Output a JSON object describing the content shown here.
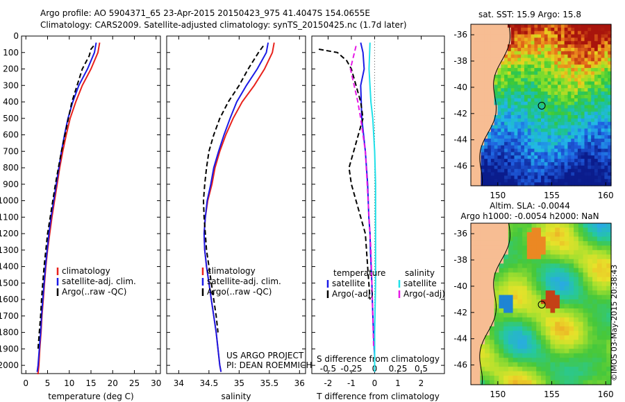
{
  "header": {
    "line1": "Argo profile: AO 5904371_65 23-Apr-2015 20150423_975 41.4047S 154.0655E",
    "line2": "Climatology: CARS2009. Satellite-adjusted climatology: synTS_20150425.nc (1.7d later)"
  },
  "credit": {
    "line1": "US ARGO PROJECT",
    "line2": "PI: DEAN ROEMMICH",
    "stamp": "©IMOS 03-May-2015 20:38:43"
  },
  "colors": {
    "climatology": "#e8211b",
    "satellite": "#1a1ae6",
    "argo": "#000000",
    "satellite_salinity": "#1fe0e8",
    "argo_salinity": "#e619e6"
  },
  "chart_data": [
    {
      "type": "line",
      "name": "temperature",
      "xlabel": "temperature (deg C)",
      "xlim": [
        -1,
        31
      ],
      "xticks": [
        0,
        5,
        10,
        15,
        20,
        25,
        30
      ],
      "ylim": [
        2050,
        0
      ],
      "yticks": [
        0,
        100,
        200,
        300,
        400,
        500,
        600,
        700,
        800,
        900,
        1000,
        1100,
        1200,
        1300,
        1400,
        1500,
        1600,
        1700,
        1800,
        1900,
        2000
      ],
      "legend": [
        "climatology",
        "satellite-adj. clim.",
        "Argo(..raw -QC)"
      ],
      "series": [
        {
          "name": "climatology",
          "style": "solid",
          "color": "climatology",
          "x": [
            17.0,
            16.6,
            15.0,
            13.0,
            11.5,
            10.2,
            9.3,
            8.5,
            7.8,
            7.2,
            6.6,
            6.0,
            5.5,
            5.0,
            4.6,
            4.3,
            4.0,
            3.7,
            3.5,
            3.2,
            3.0,
            2.8,
            2.6
          ],
          "y": [
            40,
            100,
            200,
            300,
            400,
            500,
            600,
            700,
            800,
            900,
            1000,
            1100,
            1200,
            1300,
            1400,
            1500,
            1600,
            1700,
            1800,
            1900,
            2000,
            2050,
            2050
          ]
        },
        {
          "name": "satellite-adj. clim.",
          "style": "solid",
          "color": "satellite",
          "x": [
            16.2,
            15.8,
            14.2,
            12.2,
            10.8,
            9.7,
            8.9,
            8.2,
            7.6,
            7.0,
            6.4,
            5.8,
            5.3,
            4.9,
            4.5,
            4.2,
            3.9,
            3.6,
            3.4,
            3.1,
            2.8,
            2.6
          ],
          "y": [
            40,
            100,
            200,
            300,
            400,
            500,
            600,
            700,
            800,
            900,
            1000,
            1100,
            1200,
            1300,
            1400,
            1500,
            1600,
            1700,
            1800,
            1900,
            2000,
            2040
          ]
        },
        {
          "name": "Argo(..raw -QC)",
          "style": "dashed",
          "color": "argo",
          "x": [
            15.6,
            15.0,
            14.6,
            13.0,
            11.8,
            10.6,
            9.8,
            9.0,
            8.2,
            7.5,
            6.8,
            6.2,
            5.6,
            5.0,
            4.6,
            4.2,
            3.9,
            3.6,
            3.4,
            3.1,
            2.8
          ],
          "y": [
            60,
            80,
            120,
            200,
            300,
            400,
            500,
            600,
            700,
            800,
            900,
            1000,
            1100,
            1200,
            1300,
            1400,
            1500,
            1600,
            1700,
            1800,
            1900
          ]
        }
      ]
    },
    {
      "type": "line",
      "name": "salinity",
      "xlabel": "salinity",
      "xlim": [
        33.8,
        36.1
      ],
      "xticks": [
        34,
        34.5,
        35,
        35.5,
        36
      ],
      "ylim": [
        2050,
        0
      ],
      "legend": [
        "climatology",
        "satellite-adj. clim.",
        "Argo(..raw -QC)"
      ],
      "series": [
        {
          "name": "climatology",
          "style": "solid",
          "color": "climatology",
          "x": [
            35.58,
            35.55,
            35.42,
            35.25,
            35.05,
            34.9,
            34.78,
            34.68,
            34.6,
            34.55,
            34.48,
            34.44,
            34.42,
            34.43,
            34.46,
            34.5,
            34.54,
            34.58,
            34.62,
            34.65,
            34.68,
            34.7
          ],
          "y": [
            40,
            100,
            200,
            300,
            400,
            500,
            600,
            700,
            800,
            900,
            1000,
            1100,
            1200,
            1300,
            1400,
            1500,
            1600,
            1700,
            1800,
            1900,
            2000,
            2040
          ]
        },
        {
          "name": "satellite-adj. clim.",
          "style": "solid",
          "color": "satellite",
          "x": [
            35.48,
            35.45,
            35.3,
            35.12,
            34.96,
            34.85,
            34.75,
            34.66,
            34.58,
            34.53,
            34.47,
            34.44,
            34.42,
            34.43,
            34.46,
            34.5,
            34.54,
            34.58,
            34.62,
            34.65,
            34.68,
            34.7
          ],
          "y": [
            40,
            100,
            200,
            300,
            400,
            500,
            600,
            700,
            800,
            900,
            1000,
            1100,
            1200,
            1300,
            1400,
            1500,
            1600,
            1700,
            1800,
            1900,
            2000,
            2040
          ]
        },
        {
          "name": "Argo(..raw -QC)",
          "style": "dashed",
          "color": "argo",
          "x": [
            35.4,
            35.32,
            35.15,
            35.0,
            34.82,
            34.68,
            34.58,
            34.5,
            34.46,
            34.43,
            34.41,
            34.42,
            34.44,
            34.46,
            34.5,
            34.54,
            34.58,
            34.62,
            34.65
          ],
          "y": [
            60,
            100,
            200,
            300,
            400,
            500,
            600,
            700,
            800,
            900,
            1000,
            1100,
            1200,
            1300,
            1400,
            1500,
            1600,
            1700,
            1800
          ]
        }
      ]
    },
    {
      "type": "line",
      "name": "difference",
      "xlabel": "T difference from climatology",
      "xlabel_top": "S difference from climatology",
      "xlim": [
        -2.7,
        3.0
      ],
      "xticks": [
        -2,
        -1,
        0,
        1,
        2
      ],
      "xticks_top_labels": [
        "-0.5",
        "-0.25",
        "0",
        "0.25",
        "0.5"
      ],
      "xticks_top_values": [
        -0.5,
        -0.25,
        0,
        0.25,
        0.5
      ],
      "ylim": [
        2050,
        0
      ],
      "legend_temperature_title": "temperature",
      "legend_salinity_title": "salinity",
      "legend_temperature": [
        "satellite",
        "Argo(-adj)"
      ],
      "legend_salinity": [
        "satellite",
        "Argo(-adj)"
      ],
      "series": [
        {
          "name": "T satellite",
          "style": "solid",
          "color": "satellite",
          "x": [
            -0.6,
            -0.5,
            -0.45,
            -0.6,
            -0.55,
            -0.4,
            -0.3,
            -0.25,
            -0.2,
            -0.18,
            -0.15,
            -0.12,
            -0.1,
            -0.05,
            0.0,
            0.0
          ],
          "y": [
            40,
            100,
            200,
            300,
            500,
            700,
            900,
            1100,
            1200,
            1300,
            1400,
            1500,
            1600,
            1800,
            1950,
            2040
          ]
        },
        {
          "name": "T Argo(-adj)",
          "style": "dashed",
          "color": "argo",
          "x": [
            -2.4,
            -1.6,
            -1.2,
            -1.0,
            -0.8,
            -0.6,
            -0.5,
            -0.7,
            -0.9,
            -1.1,
            -1.0,
            -0.8,
            -0.6,
            -0.4,
            -0.3,
            -0.2
          ],
          "y": [
            80,
            100,
            150,
            200,
            300,
            400,
            500,
            600,
            700,
            800,
            900,
            1000,
            1100,
            1200,
            1400,
            1600
          ]
        },
        {
          "name": "S satellite",
          "style": "solid",
          "color": "satellite_salinity",
          "x": [
            -0.05,
            -0.06,
            -0.04,
            -0.02,
            0.0,
            0.01,
            0.01,
            0.01,
            0.01,
            0.0,
            0.0
          ],
          "y": [
            40,
            200,
            400,
            500,
            700,
            900,
            1100,
            1300,
            1500,
            1800,
            2040
          ]
        },
        {
          "name": "S Argo(-adj)",
          "style": "dashed",
          "color": "argo_salinity",
          "x": [
            -0.2,
            -0.26,
            -0.22,
            -0.18,
            -0.15,
            -0.1,
            -0.08,
            -0.06,
            -0.04,
            -0.03,
            -0.02,
            -0.01
          ],
          "y": [
            60,
            200,
            300,
            400,
            500,
            700,
            900,
            1100,
            1300,
            1500,
            1700,
            1900
          ]
        }
      ]
    },
    {
      "type": "heatmap",
      "name": "sst_map",
      "title": "sat. SST: 15.9 Argo: 15.8",
      "xticks": [
        150,
        155,
        160
      ],
      "yticks": [
        -36,
        -38,
        -40,
        -42,
        -44,
        -46
      ],
      "xlim": [
        147.5,
        160.5
      ],
      "ylim": [
        -47.5,
        -35.2
      ],
      "argo_position": [
        154.07,
        -41.4
      ]
    },
    {
      "type": "heatmap",
      "name": "sla_map",
      "title_line1": "Altim. SLA: -0.0044",
      "title_line2": "Argo h1000: -0.0054 h2000: NaN",
      "xticks": [
        150,
        155,
        160
      ],
      "yticks": [
        -36,
        -38,
        -40,
        -42,
        -44,
        -46
      ],
      "xlim": [
        147.5,
        160.5
      ],
      "ylim": [
        -47.5,
        -35.2
      ],
      "argo_position": [
        154.07,
        -41.4
      ]
    }
  ]
}
